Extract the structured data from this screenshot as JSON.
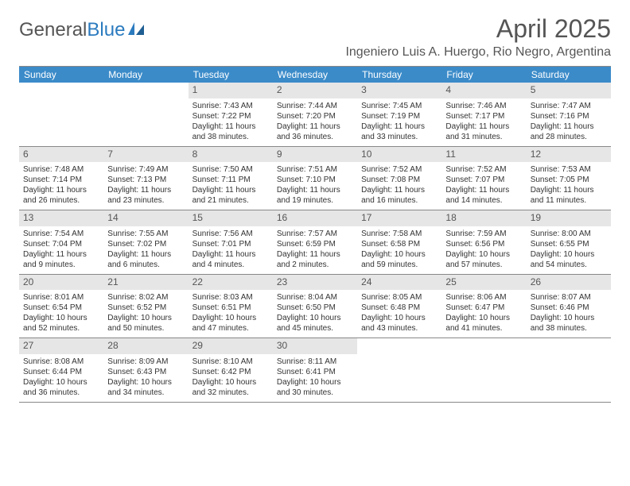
{
  "logo": {
    "word1": "General",
    "word2": "Blue"
  },
  "title": "April 2025",
  "location": "Ingeniero Luis A. Huergo, Rio Negro, Argentina",
  "colors": {
    "header_bar": "#3b8bc9",
    "daynum_bg": "#e6e6e6",
    "text": "#333333",
    "title_text": "#555555",
    "rule": "#888888",
    "logo_accent": "#2b7bbf"
  },
  "typography": {
    "title_fontsize": 32,
    "location_fontsize": 16,
    "dayhead_fontsize": 12,
    "daynum_fontsize": 12,
    "body_fontsize": 10
  },
  "day_headers": [
    "Sunday",
    "Monday",
    "Tuesday",
    "Wednesday",
    "Thursday",
    "Friday",
    "Saturday"
  ],
  "weeks": [
    [
      null,
      null,
      {
        "n": "1",
        "sunrise": "7:43 AM",
        "sunset": "7:22 PM",
        "daylight": "11 hours and 38 minutes."
      },
      {
        "n": "2",
        "sunrise": "7:44 AM",
        "sunset": "7:20 PM",
        "daylight": "11 hours and 36 minutes."
      },
      {
        "n": "3",
        "sunrise": "7:45 AM",
        "sunset": "7:19 PM",
        "daylight": "11 hours and 33 minutes."
      },
      {
        "n": "4",
        "sunrise": "7:46 AM",
        "sunset": "7:17 PM",
        "daylight": "11 hours and 31 minutes."
      },
      {
        "n": "5",
        "sunrise": "7:47 AM",
        "sunset": "7:16 PM",
        "daylight": "11 hours and 28 minutes."
      }
    ],
    [
      {
        "n": "6",
        "sunrise": "7:48 AM",
        "sunset": "7:14 PM",
        "daylight": "11 hours and 26 minutes."
      },
      {
        "n": "7",
        "sunrise": "7:49 AM",
        "sunset": "7:13 PM",
        "daylight": "11 hours and 23 minutes."
      },
      {
        "n": "8",
        "sunrise": "7:50 AM",
        "sunset": "7:11 PM",
        "daylight": "11 hours and 21 minutes."
      },
      {
        "n": "9",
        "sunrise": "7:51 AM",
        "sunset": "7:10 PM",
        "daylight": "11 hours and 19 minutes."
      },
      {
        "n": "10",
        "sunrise": "7:52 AM",
        "sunset": "7:08 PM",
        "daylight": "11 hours and 16 minutes."
      },
      {
        "n": "11",
        "sunrise": "7:52 AM",
        "sunset": "7:07 PM",
        "daylight": "11 hours and 14 minutes."
      },
      {
        "n": "12",
        "sunrise": "7:53 AM",
        "sunset": "7:05 PM",
        "daylight": "11 hours and 11 minutes."
      }
    ],
    [
      {
        "n": "13",
        "sunrise": "7:54 AM",
        "sunset": "7:04 PM",
        "daylight": "11 hours and 9 minutes."
      },
      {
        "n": "14",
        "sunrise": "7:55 AM",
        "sunset": "7:02 PM",
        "daylight": "11 hours and 6 minutes."
      },
      {
        "n": "15",
        "sunrise": "7:56 AM",
        "sunset": "7:01 PM",
        "daylight": "11 hours and 4 minutes."
      },
      {
        "n": "16",
        "sunrise": "7:57 AM",
        "sunset": "6:59 PM",
        "daylight": "11 hours and 2 minutes."
      },
      {
        "n": "17",
        "sunrise": "7:58 AM",
        "sunset": "6:58 PM",
        "daylight": "10 hours and 59 minutes."
      },
      {
        "n": "18",
        "sunrise": "7:59 AM",
        "sunset": "6:56 PM",
        "daylight": "10 hours and 57 minutes."
      },
      {
        "n": "19",
        "sunrise": "8:00 AM",
        "sunset": "6:55 PM",
        "daylight": "10 hours and 54 minutes."
      }
    ],
    [
      {
        "n": "20",
        "sunrise": "8:01 AM",
        "sunset": "6:54 PM",
        "daylight": "10 hours and 52 minutes."
      },
      {
        "n": "21",
        "sunrise": "8:02 AM",
        "sunset": "6:52 PM",
        "daylight": "10 hours and 50 minutes."
      },
      {
        "n": "22",
        "sunrise": "8:03 AM",
        "sunset": "6:51 PM",
        "daylight": "10 hours and 47 minutes."
      },
      {
        "n": "23",
        "sunrise": "8:04 AM",
        "sunset": "6:50 PM",
        "daylight": "10 hours and 45 minutes."
      },
      {
        "n": "24",
        "sunrise": "8:05 AM",
        "sunset": "6:48 PM",
        "daylight": "10 hours and 43 minutes."
      },
      {
        "n": "25",
        "sunrise": "8:06 AM",
        "sunset": "6:47 PM",
        "daylight": "10 hours and 41 minutes."
      },
      {
        "n": "26",
        "sunrise": "8:07 AM",
        "sunset": "6:46 PM",
        "daylight": "10 hours and 38 minutes."
      }
    ],
    [
      {
        "n": "27",
        "sunrise": "8:08 AM",
        "sunset": "6:44 PM",
        "daylight": "10 hours and 36 minutes."
      },
      {
        "n": "28",
        "sunrise": "8:09 AM",
        "sunset": "6:43 PM",
        "daylight": "10 hours and 34 minutes."
      },
      {
        "n": "29",
        "sunrise": "8:10 AM",
        "sunset": "6:42 PM",
        "daylight": "10 hours and 32 minutes."
      },
      {
        "n": "30",
        "sunrise": "8:11 AM",
        "sunset": "6:41 PM",
        "daylight": "10 hours and 30 minutes."
      },
      null,
      null,
      null
    ]
  ],
  "labels": {
    "sunrise": "Sunrise:",
    "sunset": "Sunset:",
    "daylight": "Daylight:"
  }
}
